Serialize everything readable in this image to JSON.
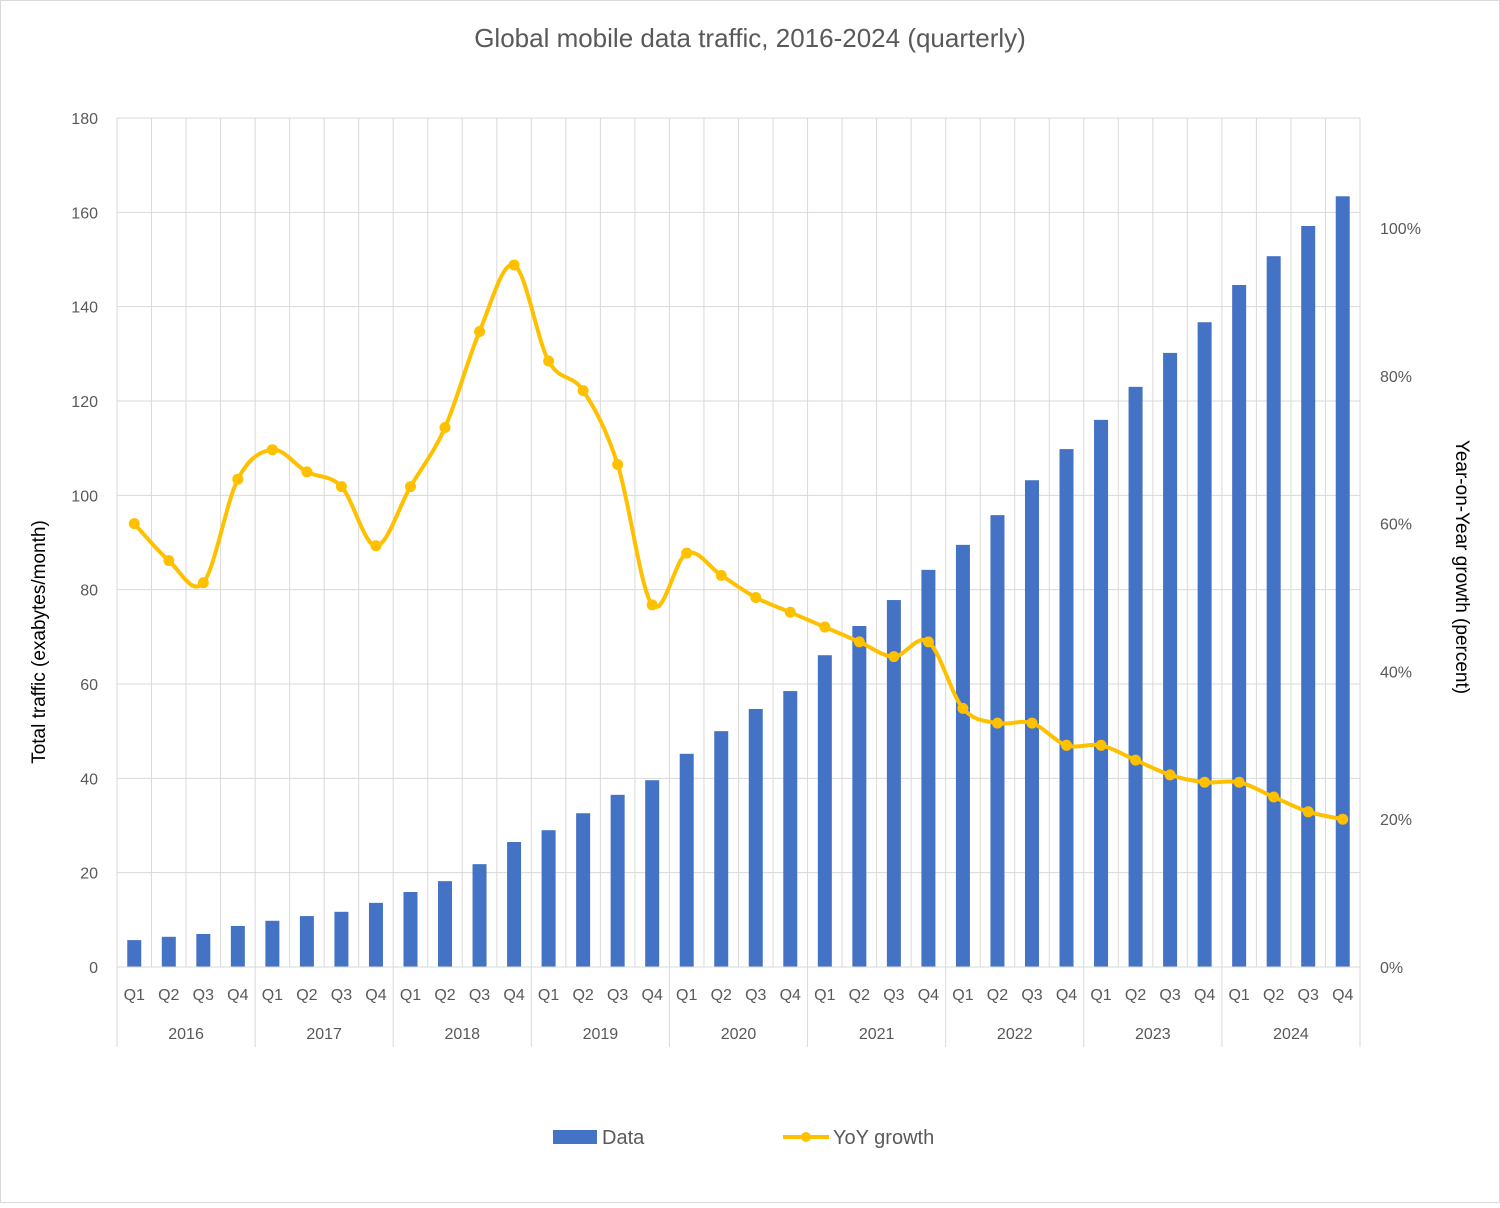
{
  "chart_data": {
    "type": "bar+line",
    "title": "Global mobile data traffic, 2016-2024 (quarterly)",
    "ylabel": "Total traffic (exabytes/month)",
    "y2label": "Year-on-Year growth (percent)",
    "ylim": [
      0,
      180
    ],
    "yticks": [
      0,
      20,
      40,
      60,
      80,
      100,
      120,
      140,
      160,
      180
    ],
    "y2lim": [
      0,
      115
    ],
    "y2ticks": [
      "0%",
      "20%",
      "40%",
      "60%",
      "80%",
      "100%"
    ],
    "y2tick_values": [
      0,
      20,
      40,
      60,
      80,
      100
    ],
    "grid": true,
    "legend_position": "bottom",
    "years": [
      "2016",
      "2017",
      "2018",
      "2019",
      "2020",
      "2021",
      "2022",
      "2023",
      "2024"
    ],
    "quarters": [
      "Q1",
      "Q2",
      "Q3",
      "Q4"
    ],
    "series": [
      {
        "name": "Data",
        "type": "bar",
        "axis": "left",
        "color": "#4472C4",
        "values": [
          5.7,
          6.4,
          7.0,
          8.7,
          9.8,
          10.8,
          11.7,
          13.6,
          15.9,
          18.2,
          21.8,
          26.5,
          29.0,
          32.6,
          36.5,
          39.6,
          45.2,
          50.0,
          54.7,
          58.5,
          66.1,
          72.3,
          77.8,
          84.2,
          89.5,
          95.8,
          103.2,
          109.8,
          116.0,
          123.0,
          130.2,
          136.7,
          144.6,
          150.7,
          157.1,
          163.4
        ]
      },
      {
        "name": "YoY growth",
        "type": "line",
        "axis": "right",
        "color": "#FFC000",
        "values": [
          60,
          55,
          52,
          66,
          70,
          67,
          65,
          57,
          65,
          73,
          86,
          95,
          82,
          78,
          68,
          49,
          56,
          53,
          50,
          48,
          46,
          44,
          42,
          44,
          35,
          33,
          33,
          30,
          30,
          28,
          26,
          25,
          25,
          23,
          21,
          20
        ]
      }
    ]
  }
}
